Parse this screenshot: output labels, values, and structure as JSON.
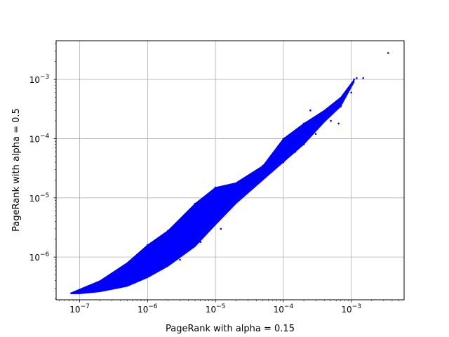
{
  "chart_data": {
    "type": "scatter",
    "title": "",
    "xlabel": "PageRank with alpha = 0.15",
    "ylabel": "PageRank with alpha = 0.5",
    "xscale": "log",
    "yscale": "log",
    "xlim": [
      4.5e-08,
      0.006
    ],
    "ylim": [
      1.9e-07,
      0.0045
    ],
    "xticks": [
      {
        "value": 1e-07,
        "mantissa": "10",
        "exp": "−7"
      },
      {
        "value": 1e-06,
        "mantissa": "10",
        "exp": "−6"
      },
      {
        "value": 1e-05,
        "mantissa": "10",
        "exp": "−5"
      },
      {
        "value": 0.0001,
        "mantissa": "10",
        "exp": "−4"
      },
      {
        "value": 0.001,
        "mantissa": "10",
        "exp": "−3"
      }
    ],
    "yticks": [
      {
        "value": 1e-06,
        "mantissa": "10",
        "exp": "−6"
      },
      {
        "value": 1e-05,
        "mantissa": "10",
        "exp": "−5"
      },
      {
        "value": 0.0001,
        "mantissa": "10",
        "exp": "−4"
      },
      {
        "value": 0.001,
        "mantissa": "10",
        "exp": "−3"
      }
    ],
    "grid": true,
    "marker_color": "#0000ff",
    "series": [
      {
        "values": [
          [
            7.5e-08,
            2.45e-07
          ],
          [
            1e-07,
            2.6e-07
          ],
          [
            1.5e-07,
            2.9e-07
          ],
          [
            2e-07,
            3.2e-07
          ],
          [
            3e-07,
            3.8e-07
          ],
          [
            5e-07,
            5e-07
          ],
          [
            7e-07,
            6e-07
          ],
          [
            1e-06,
            8e-07
          ],
          [
            1.5e-06,
            1.1e-06
          ],
          [
            2e-06,
            1.4e-06
          ],
          [
            3e-06,
            2e-06
          ],
          [
            5e-06,
            3e-06
          ],
          [
            7e-06,
            4e-06
          ],
          [
            1e-05,
            5.5e-06
          ],
          [
            1.5e-05,
            7.5e-06
          ],
          [
            2e-05,
            1e-05
          ],
          [
            3e-05,
            1.5e-05
          ],
          [
            5e-05,
            2.2e-05
          ],
          [
            7e-05,
            3e-05
          ],
          [
            0.0001,
            4e-05
          ],
          [
            0.00015,
            6e-05
          ],
          [
            0.0002,
            8e-05
          ],
          [
            0.0003,
            0.00012
          ],
          [
            0.0005,
            0.0002
          ],
          [
            0.0007,
            0.00035
          ],
          [
            0.001,
            0.0006
          ],
          [
            0.0012,
            0.00105
          ],
          [
            0.0015,
            0.00105
          ],
          [
            0.0035,
            0.0028
          ],
          [
            1e-06,
            1.6e-06
          ],
          [
            2e-06,
            2.8e-06
          ],
          [
            5e-06,
            8e-06
          ],
          [
            1e-05,
            1.5e-05
          ],
          [
            1.5e-06,
            6e-07
          ],
          [
            3e-06,
            9e-07
          ],
          [
            6e-06,
            1.8e-06
          ],
          [
            1.2e-05,
            3e-06
          ],
          [
            2.5e-05,
            1.7e-05
          ],
          [
            5e-05,
            3.5e-05
          ],
          [
            8e-05,
            5.5e-05
          ],
          [
            0.0001,
            0.0001
          ],
          [
            0.0002,
            0.00018
          ],
          [
            0.00025,
            0.0003
          ],
          [
            0.00033,
            0.000175
          ],
          [
            0.0004,
            0.0002
          ],
          [
            0.0005,
            0.00028
          ],
          [
            0.00065,
            0.00018
          ],
          [
            0.0007,
            0.0004
          ],
          [
            0.0008,
            0.0005
          ],
          [
            0.0011,
            0.001
          ],
          [
            0.0009,
            0.0007
          ]
        ]
      }
    ]
  }
}
